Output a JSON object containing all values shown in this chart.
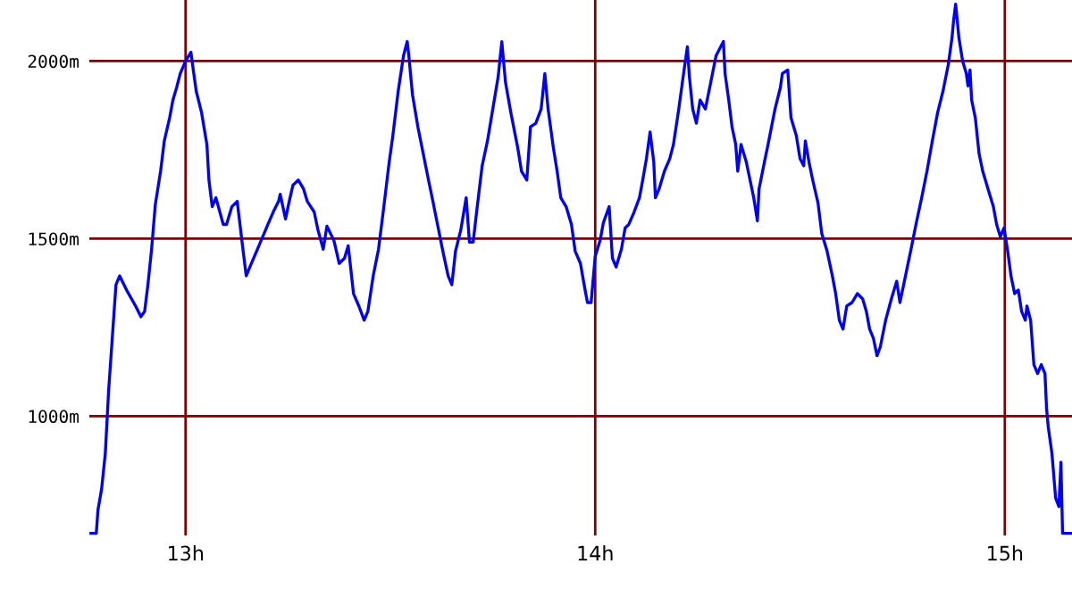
{
  "chart_data": {
    "type": "line",
    "xlim": [
      12.765,
      15.164
    ],
    "ylim": [
      664,
      2172
    ],
    "xticks": [
      {
        "value": 13,
        "label": "13h"
      },
      {
        "value": 14,
        "label": "14h"
      },
      {
        "value": 15,
        "label": "15h"
      }
    ],
    "yticks": [
      {
        "value": 1000,
        "label": "1000m"
      },
      {
        "value": 1500,
        "label": "1500m"
      },
      {
        "value": 2000,
        "label": "2000m"
      }
    ],
    "grid": true,
    "marker": "none",
    "line_style": "solid",
    "series": [
      {
        "color": "#0000ff",
        "x": [
          12.769,
          12.782,
          12.786,
          12.795,
          12.804,
          12.812,
          12.821,
          12.83,
          12.839,
          12.856,
          12.878,
          12.891,
          12.9,
          12.908,
          12.917,
          12.926,
          12.939,
          12.948,
          12.961,
          12.969,
          12.978,
          12.987,
          13.0,
          13.013,
          13.017,
          13.026,
          13.039,
          13.052,
          13.057,
          13.065,
          13.074,
          13.092,
          13.1,
          13.113,
          13.126,
          13.14,
          13.148,
          13.157,
          13.179,
          13.201,
          13.214,
          13.227,
          13.231,
          13.244,
          13.253,
          13.262,
          13.275,
          13.288,
          13.297,
          13.314,
          13.323,
          13.336,
          13.345,
          13.362,
          13.375,
          13.388,
          13.397,
          13.41,
          13.423,
          13.436,
          13.445,
          13.458,
          13.471,
          13.484,
          13.497,
          13.506,
          13.519,
          13.532,
          13.541,
          13.545,
          13.554,
          13.567,
          13.58,
          13.593,
          13.602,
          13.615,
          13.628,
          13.641,
          13.65,
          13.659,
          13.672,
          13.685,
          13.693,
          13.702,
          13.711,
          13.724,
          13.737,
          13.75,
          13.763,
          13.772,
          13.781,
          13.794,
          13.811,
          13.82,
          13.833,
          13.842,
          13.855,
          13.868,
          13.877,
          13.885,
          13.898,
          13.907,
          13.916,
          13.929,
          13.942,
          13.951,
          13.964,
          13.973,
          13.981,
          13.99,
          14.0,
          14.012,
          14.02,
          14.034,
          14.042,
          14.051,
          14.064,
          14.073,
          14.082,
          14.095,
          14.108,
          14.116,
          14.125,
          14.134,
          14.143,
          14.147,
          14.156,
          14.169,
          14.182,
          14.191,
          14.204,
          14.217,
          14.225,
          14.23,
          14.238,
          14.247,
          14.256,
          14.269,
          14.282,
          14.295,
          14.313,
          14.317,
          14.326,
          14.334,
          14.343,
          14.348,
          14.356,
          14.369,
          14.378,
          14.387,
          14.396,
          14.4,
          14.413,
          14.422,
          14.439,
          14.452,
          14.457,
          14.47,
          14.478,
          14.491,
          14.5,
          14.509,
          14.513,
          14.522,
          14.531,
          14.544,
          14.553,
          14.566,
          14.579,
          14.587,
          14.596,
          14.605,
          14.614,
          14.627,
          14.64,
          14.653,
          14.662,
          14.67,
          14.679,
          14.688,
          14.696,
          14.709,
          14.723,
          14.736,
          14.744,
          14.753,
          14.762,
          14.771,
          14.784,
          14.797,
          14.81,
          14.823,
          14.836,
          14.849,
          14.862,
          14.871,
          14.875,
          14.88,
          14.888,
          14.897,
          14.906,
          14.91,
          14.915,
          14.919,
          14.928,
          14.937,
          14.946,
          14.959,
          14.972,
          14.98,
          14.989,
          14.998,
          15.007,
          15.015,
          15.024,
          15.033,
          15.041,
          15.05,
          15.054,
          15.063,
          15.071,
          15.08,
          15.089,
          15.098,
          15.102,
          15.106,
          15.115,
          15.124,
          15.132,
          15.137,
          15.141,
          15.163
        ],
        "values": [
          670,
          670,
          735,
          795,
          895,
          1070,
          1220,
          1370,
          1395,
          1355,
          1310,
          1280,
          1295,
          1370,
          1470,
          1595,
          1690,
          1775,
          1840,
          1890,
          1925,
          1965,
          2000,
          2025,
          1990,
          1915,
          1855,
          1765,
          1665,
          1590,
          1615,
          1540,
          1540,
          1590,
          1605,
          1470,
          1395,
          1420,
          1480,
          1540,
          1575,
          1605,
          1625,
          1555,
          1605,
          1650,
          1665,
          1640,
          1605,
          1575,
          1525,
          1470,
          1535,
          1495,
          1430,
          1445,
          1480,
          1345,
          1310,
          1270,
          1295,
          1395,
          1470,
          1590,
          1715,
          1790,
          1915,
          2015,
          2055,
          2015,
          1905,
          1815,
          1740,
          1665,
          1615,
          1540,
          1465,
          1395,
          1370,
          1465,
          1525,
          1615,
          1490,
          1490,
          1580,
          1705,
          1775,
          1865,
          1955,
          2055,
          1940,
          1855,
          1755,
          1690,
          1665,
          1815,
          1825,
          1865,
          1965,
          1865,
          1755,
          1690,
          1615,
          1590,
          1540,
          1465,
          1430,
          1370,
          1320,
          1320,
          1450,
          1495,
          1545,
          1590,
          1445,
          1420,
          1470,
          1530,
          1540,
          1575,
          1615,
          1665,
          1725,
          1800,
          1715,
          1615,
          1640,
          1690,
          1725,
          1765,
          1865,
          1975,
          2040,
          1955,
          1865,
          1825,
          1890,
          1865,
          1940,
          2015,
          2055,
          1965,
          1890,
          1815,
          1765,
          1690,
          1765,
          1715,
          1665,
          1615,
          1550,
          1640,
          1715,
          1765,
          1865,
          1925,
          1965,
          1975,
          1840,
          1790,
          1725,
          1705,
          1775,
          1715,
          1665,
          1600,
          1515,
          1465,
          1395,
          1345,
          1270,
          1245,
          1310,
          1320,
          1345,
          1330,
          1295,
          1245,
          1220,
          1170,
          1195,
          1270,
          1330,
          1380,
          1320,
          1370,
          1420,
          1470,
          1545,
          1615,
          1690,
          1775,
          1855,
          1915,
          1990,
          2065,
          2115,
          2160,
          2065,
          2000,
          1965,
          1930,
          1975,
          1890,
          1840,
          1740,
          1690,
          1640,
          1590,
          1540,
          1505,
          1530,
          1465,
          1395,
          1345,
          1355,
          1295,
          1270,
          1310,
          1270,
          1145,
          1120,
          1145,
          1120,
          1020,
          970,
          895,
          770,
          745,
          870,
          670,
          670
        ]
      }
    ]
  }
}
